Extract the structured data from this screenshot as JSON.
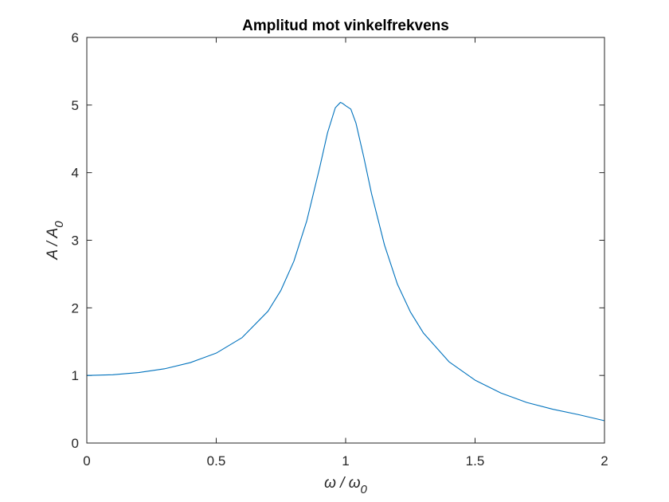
{
  "chart_data": {
    "type": "line",
    "title": "Amplitud mot vinkelfrekvens",
    "xlabel": {
      "main": "ω / ω",
      "sub": "0"
    },
    "ylabel": {
      "main": "A / A",
      "sub": "0"
    },
    "xlim": [
      0,
      2
    ],
    "ylim": [
      0,
      6
    ],
    "xticks": [
      0,
      0.5,
      1,
      1.5,
      2
    ],
    "xtick_labels": [
      "0",
      "0.5",
      "1",
      "1.5",
      "2"
    ],
    "yticks": [
      0,
      1,
      2,
      3,
      4,
      5,
      6
    ],
    "ytick_labels": [
      "0",
      "1",
      "2",
      "3",
      "4",
      "5",
      "6"
    ],
    "grid": false,
    "series": [
      {
        "color": "#0072BD",
        "x": [
          0,
          0.1,
          0.2,
          0.3,
          0.4,
          0.5,
          0.6,
          0.7,
          0.75,
          0.8,
          0.85,
          0.9,
          0.93,
          0.96,
          0.98,
          0.99,
          1.0,
          1.02,
          1.04,
          1.07,
          1.1,
          1.15,
          1.2,
          1.25,
          1.3,
          1.4,
          1.5,
          1.6,
          1.7,
          1.8,
          1.9,
          2.0
        ],
        "y": [
          1.0,
          1.01,
          1.042,
          1.098,
          1.19,
          1.33,
          1.56,
          1.95,
          2.26,
          2.69,
          3.29,
          4.08,
          4.59,
          4.96,
          5.04,
          5.02,
          4.99,
          4.94,
          4.73,
          4.23,
          3.69,
          2.93,
          2.35,
          1.94,
          1.63,
          1.2,
          0.93,
          0.74,
          0.6,
          0.5,
          0.42,
          0.33
        ]
      }
    ]
  }
}
